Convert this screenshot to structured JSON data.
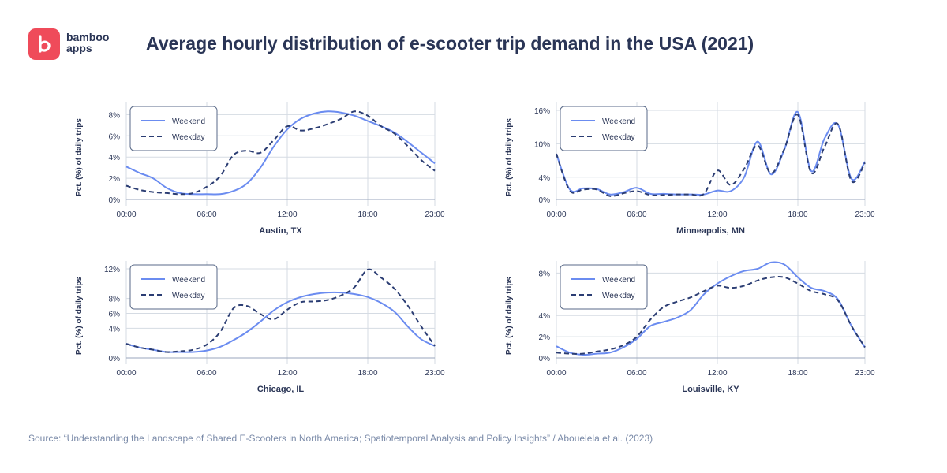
{
  "brand": {
    "line1": "bamboo",
    "line2": "apps",
    "accent": "#ef4b5a"
  },
  "title": "Average hourly distribution of e-scooter trip demand in the USA (2021)",
  "source": "Source: “Understanding the Landscape of Shared E-Scooters in North America; Spatiotemporal Analysis and Policy Insights” / Abouelela et al. (2023)",
  "colors": {
    "weekend": "#6b8cf0",
    "weekday": "#2b3d73",
    "grid": "#d5dbe3",
    "axis": "#2a3556"
  },
  "chart_data": [
    {
      "type": "line",
      "title": "Austin, TX",
      "xlabel": "Austin, TX",
      "ylabel": "Pct. (%) of daily trips",
      "x": [
        0,
        1,
        2,
        3,
        4,
        5,
        6,
        7,
        8,
        9,
        10,
        11,
        12,
        13,
        14,
        15,
        16,
        17,
        18,
        19,
        20,
        21,
        22,
        23
      ],
      "xticks": [
        "00:00",
        "06:00",
        "12:00",
        "18:00",
        "23:00"
      ],
      "xtick_values": [
        0,
        6,
        12,
        18,
        23
      ],
      "yticks": [
        "0%",
        "2%",
        "4%",
        "6%",
        "8%"
      ],
      "ytick_values": [
        0,
        2,
        4,
        6,
        8
      ],
      "ylim": [
        0,
        8.4
      ],
      "legend": {
        "weekend": "Weekend",
        "weekday": "Weekday"
      },
      "series": [
        {
          "name": "Weekend",
          "values": [
            3.1,
            2.5,
            2.0,
            1.1,
            0.6,
            0.5,
            0.5,
            0.5,
            0.8,
            1.5,
            3.0,
            5.0,
            6.6,
            7.6,
            8.1,
            8.3,
            8.2,
            7.9,
            7.4,
            6.9,
            6.3,
            5.4,
            4.4,
            3.4
          ]
        },
        {
          "name": "Weekday",
          "values": [
            1.3,
            0.9,
            0.7,
            0.6,
            0.5,
            0.6,
            1.2,
            2.2,
            4.2,
            4.6,
            4.4,
            5.6,
            6.9,
            6.5,
            6.7,
            7.1,
            7.6,
            8.3,
            7.9,
            6.9,
            6.2,
            5.0,
            3.7,
            2.7
          ]
        }
      ]
    },
    {
      "type": "line",
      "title": "Minneapolis, MN",
      "xlabel": "Minneapolis, MN",
      "ylabel": "Pct. (%) of daily trips",
      "x": [
        0,
        1,
        2,
        3,
        4,
        5,
        6,
        7,
        8,
        9,
        10,
        11,
        12,
        13,
        14,
        15,
        16,
        17,
        18,
        19,
        20,
        21,
        22,
        23
      ],
      "xticks": [
        "00:00",
        "06:00",
        "12:00",
        "18:00",
        "23:00"
      ],
      "xtick_values": [
        0,
        6,
        12,
        18,
        23
      ],
      "yticks": [
        "0%",
        "4%",
        "10%",
        "16%"
      ],
      "ytick_values": [
        0,
        4,
        10,
        16
      ],
      "ylim": [
        0,
        16
      ],
      "legend": {
        "weekend": "Weekend",
        "weekday": "Weekday"
      },
      "series": [
        {
          "name": "Weekend",
          "values": [
            8.2,
            1.8,
            2.0,
            1.9,
            0.9,
            1.3,
            2.1,
            1.0,
            1.0,
            0.9,
            0.9,
            0.9,
            1.6,
            1.5,
            4.0,
            10.4,
            4.5,
            9.0,
            15.7,
            5.1,
            11.0,
            13.4,
            3.7,
            6.8
          ]
        },
        {
          "name": "Weekday",
          "values": [
            8.2,
            1.6,
            1.8,
            1.8,
            0.6,
            1.1,
            1.5,
            0.8,
            0.8,
            0.9,
            0.9,
            1.0,
            5.2,
            2.6,
            5.5,
            9.7,
            4.7,
            9.1,
            15.2,
            4.8,
            9.5,
            13.5,
            3.3,
            6.6
          ]
        }
      ]
    },
    {
      "type": "line",
      "title": "Chicago, IL",
      "xlabel": "Chicago, IL",
      "ylabel": "Pct. (%) of daily trips",
      "x": [
        0,
        1,
        2,
        3,
        4,
        5,
        6,
        7,
        8,
        9,
        10,
        11,
        12,
        13,
        14,
        15,
        16,
        17,
        18,
        19,
        20,
        21,
        22,
        23
      ],
      "xticks": [
        "00:00",
        "06:00",
        "12:00",
        "18:00",
        "23:00"
      ],
      "xtick_values": [
        0,
        6,
        12,
        18,
        23
      ],
      "yticks": [
        "0%",
        "4%",
        "6%",
        "8%",
        "12%"
      ],
      "ytick_values": [
        0,
        4,
        6,
        8,
        12
      ],
      "ylim": [
        0,
        12
      ],
      "legend": {
        "weekend": "Weekend",
        "weekday": "Weekday"
      },
      "series": [
        {
          "name": "Weekend",
          "values": [
            1.9,
            1.4,
            1.1,
            0.8,
            0.8,
            0.8,
            1.0,
            1.5,
            2.4,
            3.5,
            4.9,
            6.4,
            7.5,
            8.2,
            8.6,
            8.8,
            8.8,
            8.6,
            8.2,
            7.4,
            6.2,
            4.2,
            2.5,
            1.6
          ]
        },
        {
          "name": "Weekday",
          "values": [
            1.9,
            1.4,
            1.1,
            0.8,
            0.9,
            1.1,
            1.8,
            3.5,
            6.7,
            7.0,
            5.9,
            5.2,
            6.5,
            7.5,
            7.6,
            7.8,
            8.4,
            9.5,
            11.9,
            10.8,
            9.3,
            7.0,
            4.2,
            1.6
          ]
        }
      ]
    },
    {
      "type": "line",
      "title": "Louisville, KY",
      "xlabel": "Louisville, KY",
      "ylabel": "Pct. (%) of daily trips",
      "x": [
        0,
        1,
        2,
        3,
        4,
        5,
        6,
        7,
        8,
        9,
        10,
        11,
        12,
        13,
        14,
        15,
        16,
        17,
        18,
        19,
        20,
        21,
        22,
        23
      ],
      "xticks": [
        "00:00",
        "06:00",
        "12:00",
        "18:00",
        "23:00"
      ],
      "xtick_values": [
        0,
        6,
        12,
        18,
        23
      ],
      "yticks": [
        "0%",
        "2%",
        "4%",
        "8%"
      ],
      "ytick_values": [
        0,
        2,
        4,
        8
      ],
      "ylim": [
        0,
        8.4
      ],
      "legend": {
        "weekend": "Weekend",
        "weekday": "Weekday"
      },
      "series": [
        {
          "name": "Weekend",
          "values": [
            1.1,
            0.5,
            0.3,
            0.4,
            0.5,
            1.0,
            1.8,
            3.0,
            3.4,
            3.8,
            4.5,
            6.0,
            7.0,
            7.7,
            8.2,
            8.4,
            9.0,
            8.8,
            7.6,
            6.6,
            6.3,
            5.5,
            3.0,
            1.0
          ]
        },
        {
          "name": "Weekday",
          "values": [
            0.5,
            0.4,
            0.4,
            0.6,
            0.8,
            1.2,
            2.0,
            3.6,
            4.8,
            5.3,
            5.7,
            6.3,
            6.8,
            6.6,
            6.8,
            7.3,
            7.6,
            7.6,
            7.0,
            6.3,
            6.0,
            5.4,
            3.0,
            1.0
          ]
        }
      ]
    }
  ]
}
